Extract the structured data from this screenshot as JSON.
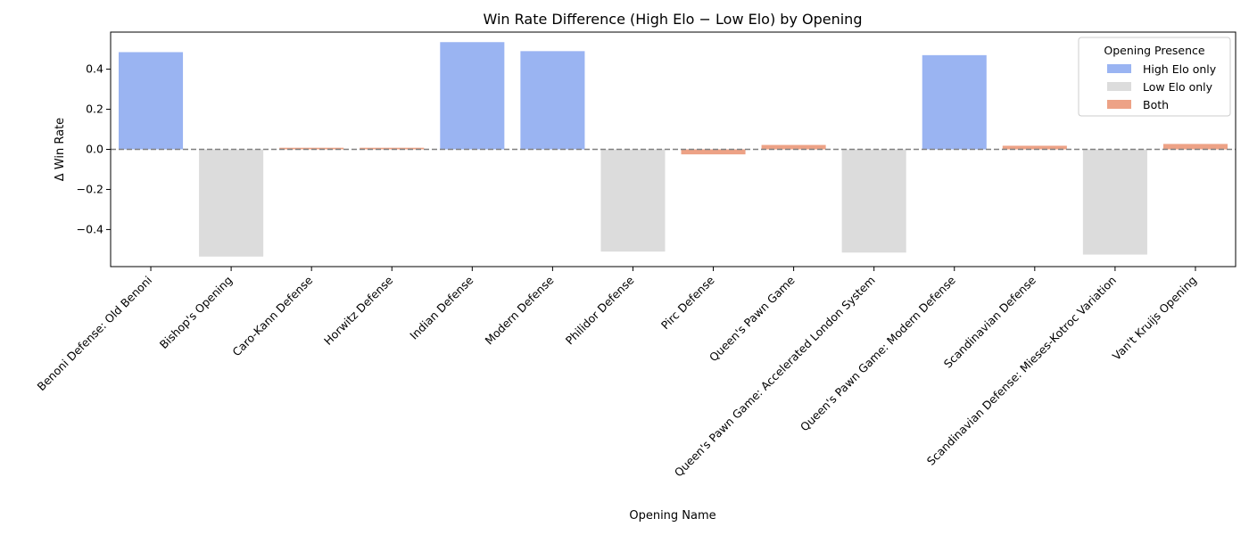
{
  "chart_data": {
    "type": "bar",
    "title": "Win Rate Difference (High Elo − Low Elo) by Opening",
    "xlabel": "Opening Name",
    "ylabel": "Δ Win Rate",
    "ylim": [
      -0.585,
      0.585
    ],
    "yticks": [
      -0.4,
      -0.2,
      0.0,
      0.2,
      0.4
    ],
    "ytick_labels": [
      "−0.4",
      "−0.2",
      "0.0",
      "0.2",
      "0.4"
    ],
    "reference_line": 0,
    "grid": false,
    "categories": [
      "Benoni Defense: Old Benoni",
      "Bishop's Opening",
      "Caro-Kann Defense",
      "Horwitz Defense",
      "Indian Defense",
      "Modern Defense",
      "Philidor Defense",
      "Pirc Defense",
      "Queen's Pawn Game",
      "Queen's Pawn Game: Accelerated London System",
      "Queen's Pawn Game: Modern Defense",
      "Scandinavian Defense",
      "Scandinavian Defense: Mieses-Kotroc Variation",
      "Van't Kruijs Opening"
    ],
    "values": [
      0.485,
      -0.535,
      0.008,
      0.008,
      0.535,
      0.49,
      -0.51,
      -0.025,
      0.022,
      -0.515,
      0.47,
      0.018,
      -0.525,
      0.027
    ],
    "groups": [
      "High Elo only",
      "Low Elo only",
      "Both",
      "Both",
      "High Elo only",
      "High Elo only",
      "Low Elo only",
      "Both",
      "Both",
      "Low Elo only",
      "High Elo only",
      "Both",
      "Low Elo only",
      "Both"
    ],
    "legend": {
      "title": "Opening Presence",
      "placement": "top-right",
      "entries": [
        {
          "label": "High Elo only",
          "color": "#9ab4f2"
        },
        {
          "label": "Low Elo only",
          "color": "#dcdcdc"
        },
        {
          "label": "Both",
          "color": "#eda286"
        }
      ]
    }
  }
}
